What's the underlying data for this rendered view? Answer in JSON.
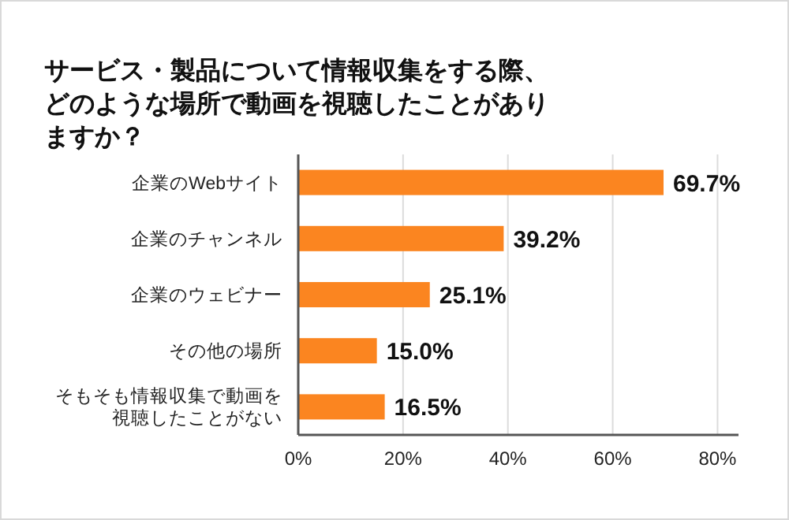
{
  "chart_data": {
    "type": "bar",
    "orientation": "horizontal",
    "title": "サービス・製品について情報収集をする際、どのような場所で動画を視聴したことがありますか？",
    "categories": [
      "企業のWebサイト",
      "企業のチャンネル",
      "企業のウェビナー",
      "その他の場所",
      "そもそも情報収集で動画を視聴したことがない"
    ],
    "values": [
      69.7,
      39.2,
      25.1,
      15.0,
      16.5
    ],
    "value_labels": [
      "69.7%",
      "39.2%",
      "25.1%",
      "15.0%",
      "16.5%"
    ],
    "color": "#fb8520",
    "xlim": [
      0,
      84
    ],
    "xticks": [
      {
        "value": 0,
        "label": "0%"
      },
      {
        "value": 20,
        "label": "20%"
      },
      {
        "value": 40,
        "label": "40%"
      },
      {
        "value": 60,
        "label": "60%"
      },
      {
        "value": 80,
        "label": "80%"
      }
    ],
    "grid": "x"
  }
}
